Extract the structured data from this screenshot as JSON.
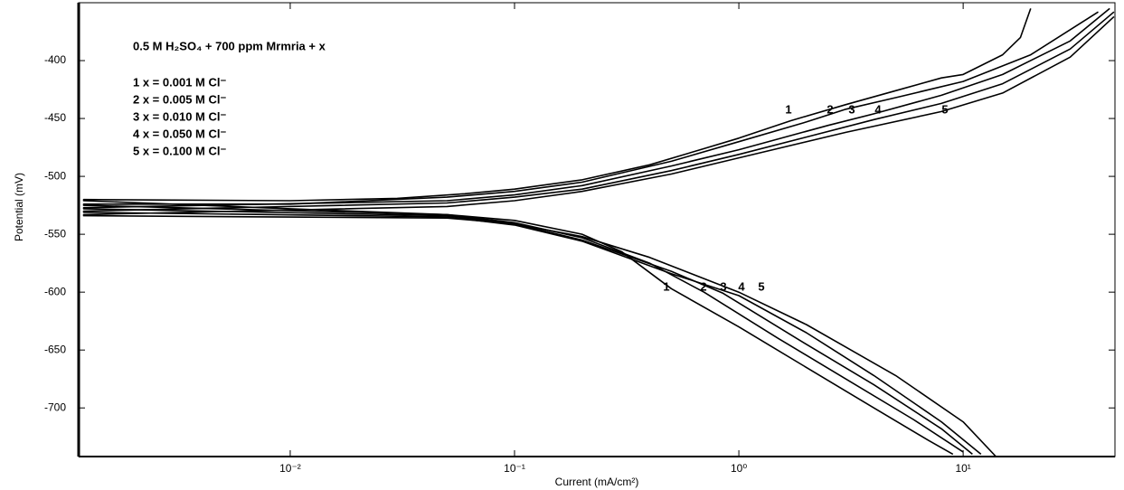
{
  "chart_data": {
    "type": "line",
    "title": "0.5 M H₂SO₄ + 700 ppm Mrmria + x",
    "x_label": "Current (mA/cm²)",
    "y_label": "Potential (mV)",
    "xscale": "log",
    "xlim": [
      0.00114,
      47.5
    ],
    "ylim": [
      -742,
      -350
    ],
    "xticks": [
      {
        "value": 0.01,
        "label": "10⁻²"
      },
      {
        "value": 0.1,
        "label": "10⁻¹"
      },
      {
        "value": 1,
        "label": "10⁰"
      },
      {
        "value": 10,
        "label": "10¹"
      }
    ],
    "yticks": [
      -400,
      -450,
      -500,
      -550,
      -600,
      -650,
      -700
    ],
    "series": [
      {
        "name": "1 x = 0.001 M Cl⁻",
        "label": "1",
        "color": "#000000",
        "x": [
          9,
          7,
          4,
          2,
          1,
          0.5,
          0.3,
          0.2,
          0.1,
          0.05,
          0.01,
          0.0012,
          0.0012,
          0.01,
          0.03,
          0.06,
          0.1,
          0.2,
          0.4,
          0.7,
          1,
          1.7,
          3,
          5,
          8,
          10,
          15,
          18,
          20
        ],
        "values": [
          -740,
          -728,
          -700,
          -665,
          -630,
          -597,
          -565,
          -550,
          -538,
          -533,
          -528,
          -521,
          -520,
          -521,
          -519,
          -515,
          -511,
          -503,
          -490,
          -476,
          -467,
          -452,
          -438,
          -426,
          -415,
          -412,
          -395,
          -380,
          -355
        ]
      },
      {
        "name": "2 x = 0.005 M Cl⁻",
        "label": "2",
        "color": "#000000",
        "x": [
          10,
          6,
          3,
          1.5,
          0.7,
          0.4,
          0.2,
          0.1,
          0.05,
          0.0012,
          0.0012,
          0.01,
          0.05,
          0.1,
          0.2,
          0.5,
          1,
          2,
          3,
          5,
          10,
          20,
          40
        ],
        "values": [
          -738,
          -710,
          -675,
          -640,
          -600,
          -575,
          -553,
          -540,
          -533,
          -525,
          -524,
          -524,
          -518,
          -513,
          -505,
          -487,
          -470,
          -453,
          -442,
          -432,
          -418,
          -395,
          -358
        ]
      },
      {
        "name": "3 x = 0.010 M Cl⁻",
        "label": "3",
        "color": "#000000",
        "x": [
          11,
          8,
          4,
          2,
          0.85,
          0.5,
          0.2,
          0.1,
          0.05,
          0.0012,
          0.0012,
          0.05,
          0.1,
          0.2,
          0.5,
          1,
          2.5,
          4,
          8,
          15,
          30,
          45
        ],
        "values": [
          -740,
          -718,
          -680,
          -645,
          -601,
          -582,
          -555,
          -541,
          -534,
          -528,
          -527,
          -521,
          -516,
          -508,
          -491,
          -477,
          -456,
          -446,
          -430,
          -412,
          -383,
          -355
        ]
      },
      {
        "name": "4 x = 0.050 M Cl⁻",
        "label": "4",
        "color": "#000000",
        "x": [
          12,
          8,
          4,
          2,
          1,
          0.5,
          0.2,
          0.1,
          0.05,
          0.0012,
          0.0012,
          0.05,
          0.1,
          0.2,
          0.5,
          1,
          2,
          4,
          8,
          15,
          30,
          47
        ],
        "values": [
          -740,
          -712,
          -672,
          -635,
          -603,
          -584,
          -556,
          -542,
          -535,
          -531,
          -530,
          -523,
          -518,
          -511,
          -495,
          -481,
          -466,
          -451,
          -437,
          -420,
          -390,
          -358
        ]
      },
      {
        "name": "5 x = 0.100 M Cl⁻",
        "label": "5",
        "color": "#000000",
        "x": [
          14,
          10,
          5,
          2,
          1,
          0.4,
          0.2,
          0.1,
          0.05,
          0.0012,
          0.0012,
          0.05,
          0.1,
          0.2,
          0.5,
          1,
          3,
          8,
          15,
          30,
          47
        ],
        "values": [
          -742,
          -712,
          -672,
          -628,
          -600,
          -570,
          -552,
          -541,
          -536,
          -534,
          -533,
          -526,
          -521,
          -513,
          -498,
          -484,
          -462,
          -444,
          -428,
          -397,
          -362
        ]
      }
    ]
  }
}
